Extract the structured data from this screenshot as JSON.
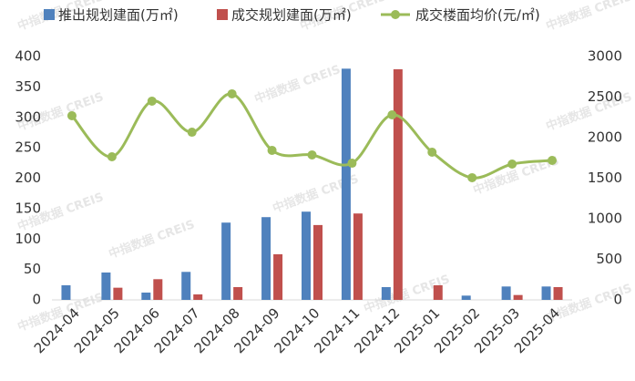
{
  "chart_data": {
    "type": "bar-line",
    "watermark": "中指数据 CREIS",
    "categories": [
      "2024-04",
      "2024-05",
      "2024-06",
      "2024-07",
      "2024-08",
      "2024-09",
      "2024-10",
      "2024-11",
      "2024-12",
      "2025-01",
      "2025-02",
      "2025-03",
      "2025-04"
    ],
    "series": [
      {
        "name": "推出规划建面(万㎡)",
        "type": "bar",
        "color": "#4f81bd",
        "values": [
          24,
          45,
          12,
          46,
          127,
          136,
          145,
          380,
          21,
          0,
          7,
          22,
          22
        ]
      },
      {
        "name": "成交规划建面(万㎡)",
        "type": "bar",
        "color": "#c0504d",
        "values": [
          0,
          20,
          34,
          9,
          21,
          75,
          123,
          142,
          379,
          24,
          0,
          8,
          21
        ]
      },
      {
        "name": "成交楼面均价(元/㎡)",
        "type": "line",
        "axis": "y2",
        "color": "#9bbb59",
        "values": [
          2270,
          1764,
          2450,
          2067,
          2540,
          1843,
          1787,
          1685,
          2281,
          1820,
          1506,
          1674,
          1719
        ]
      }
    ],
    "ylim": [
      0,
      400
    ],
    "yticks": [
      0,
      50,
      100,
      150,
      200,
      250,
      300,
      350,
      400
    ],
    "y2lim": [
      0,
      3000
    ],
    "y2ticks": [
      0,
      500,
      1000,
      1500,
      2000,
      2500,
      3000
    ],
    "grid": false
  }
}
